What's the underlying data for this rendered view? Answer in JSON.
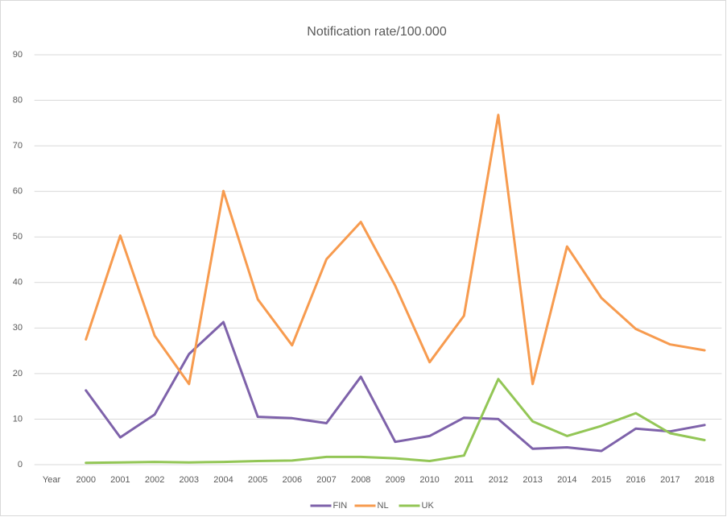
{
  "chart_data": {
    "type": "line",
    "title": "Notification rate/100.000",
    "categories": [
      "Year",
      "2000",
      "2001",
      "2002",
      "2003",
      "2004",
      "2005",
      "2006",
      "2007",
      "2008",
      "2009",
      "2010",
      "2011",
      "2012",
      "2013",
      "2014",
      "2015",
      "2016",
      "2017",
      "2018"
    ],
    "series": [
      {
        "name": "FIN",
        "color": "#7e62aa",
        "values": [
          null,
          16.3,
          6,
          11,
          24.3,
          31.3,
          10.5,
          10.2,
          9.1,
          19.3,
          5,
          6.3,
          10.3,
          10,
          3.5,
          3.8,
          3,
          7.9,
          7.3,
          8.7
        ]
      },
      {
        "name": "NL",
        "color": "#f79b4f",
        "values": [
          null,
          27.5,
          50.3,
          28.3,
          17.7,
          60.1,
          36.3,
          26.2,
          45.1,
          53.3,
          39.3,
          22.5,
          32.7,
          76.8,
          17.7,
          47.9,
          36.6,
          29.8,
          26.4,
          25.1
        ]
      },
      {
        "name": "UK",
        "color": "#93c656",
        "values": [
          null,
          0.4,
          0.5,
          0.6,
          0.5,
          0.6,
          0.8,
          0.9,
          1.7,
          1.7,
          1.4,
          0.8,
          2,
          18.8,
          9.5,
          6.3,
          8.5,
          11.3,
          6.9,
          5.4
        ]
      }
    ],
    "ylim": [
      0,
      90
    ],
    "yticks": [
      0,
      10,
      20,
      30,
      40,
      50,
      60,
      70,
      80,
      90
    ],
    "grid": true,
    "legend": "bottom"
  }
}
